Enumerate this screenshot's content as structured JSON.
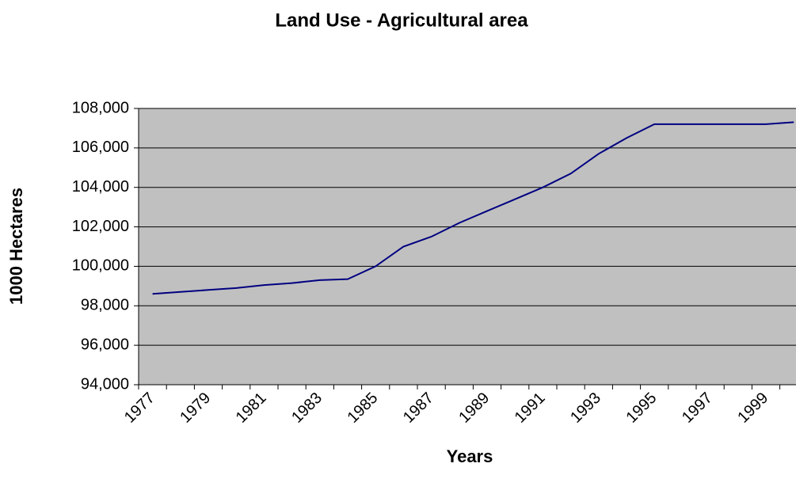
{
  "chart_data": {
    "type": "line",
    "title": "Land Use - Agricultural area",
    "x_label": "Years",
    "y_label": "1000 Hectares",
    "categories": [
      "1977",
      null,
      "1979",
      null,
      "1981",
      null,
      "1983",
      null,
      "1985",
      null,
      "1987",
      null,
      "1989",
      null,
      "1991",
      null,
      "1993",
      null,
      "1995",
      null,
      "1997",
      null,
      "1999",
      null
    ],
    "series": [
      {
        "name": "Agricultural area",
        "color": "#000080",
        "values": [
          98600,
          98700,
          98800,
          98900,
          99050,
          99150,
          99300,
          99350,
          100000,
          101000,
          101500,
          102200,
          102800,
          103400,
          104000,
          104700,
          105700,
          106500,
          107200,
          107200,
          107200,
          107200,
          107200,
          107300
        ]
      }
    ],
    "ylim": [
      94000,
      108000
    ],
    "yticks": [
      {
        "value": 94000,
        "label": "94,000"
      },
      {
        "value": 96000,
        "label": "96,000"
      },
      {
        "value": 98000,
        "label": "98,000"
      },
      {
        "value": 100000,
        "label": "100,000"
      },
      {
        "value": 102000,
        "label": "102,000"
      },
      {
        "value": 104000,
        "label": "104,000"
      },
      {
        "value": 106000,
        "label": "106,000"
      },
      {
        "value": 108000,
        "label": "108,000"
      }
    ],
    "grid": true,
    "background": "#c0c0c0"
  }
}
